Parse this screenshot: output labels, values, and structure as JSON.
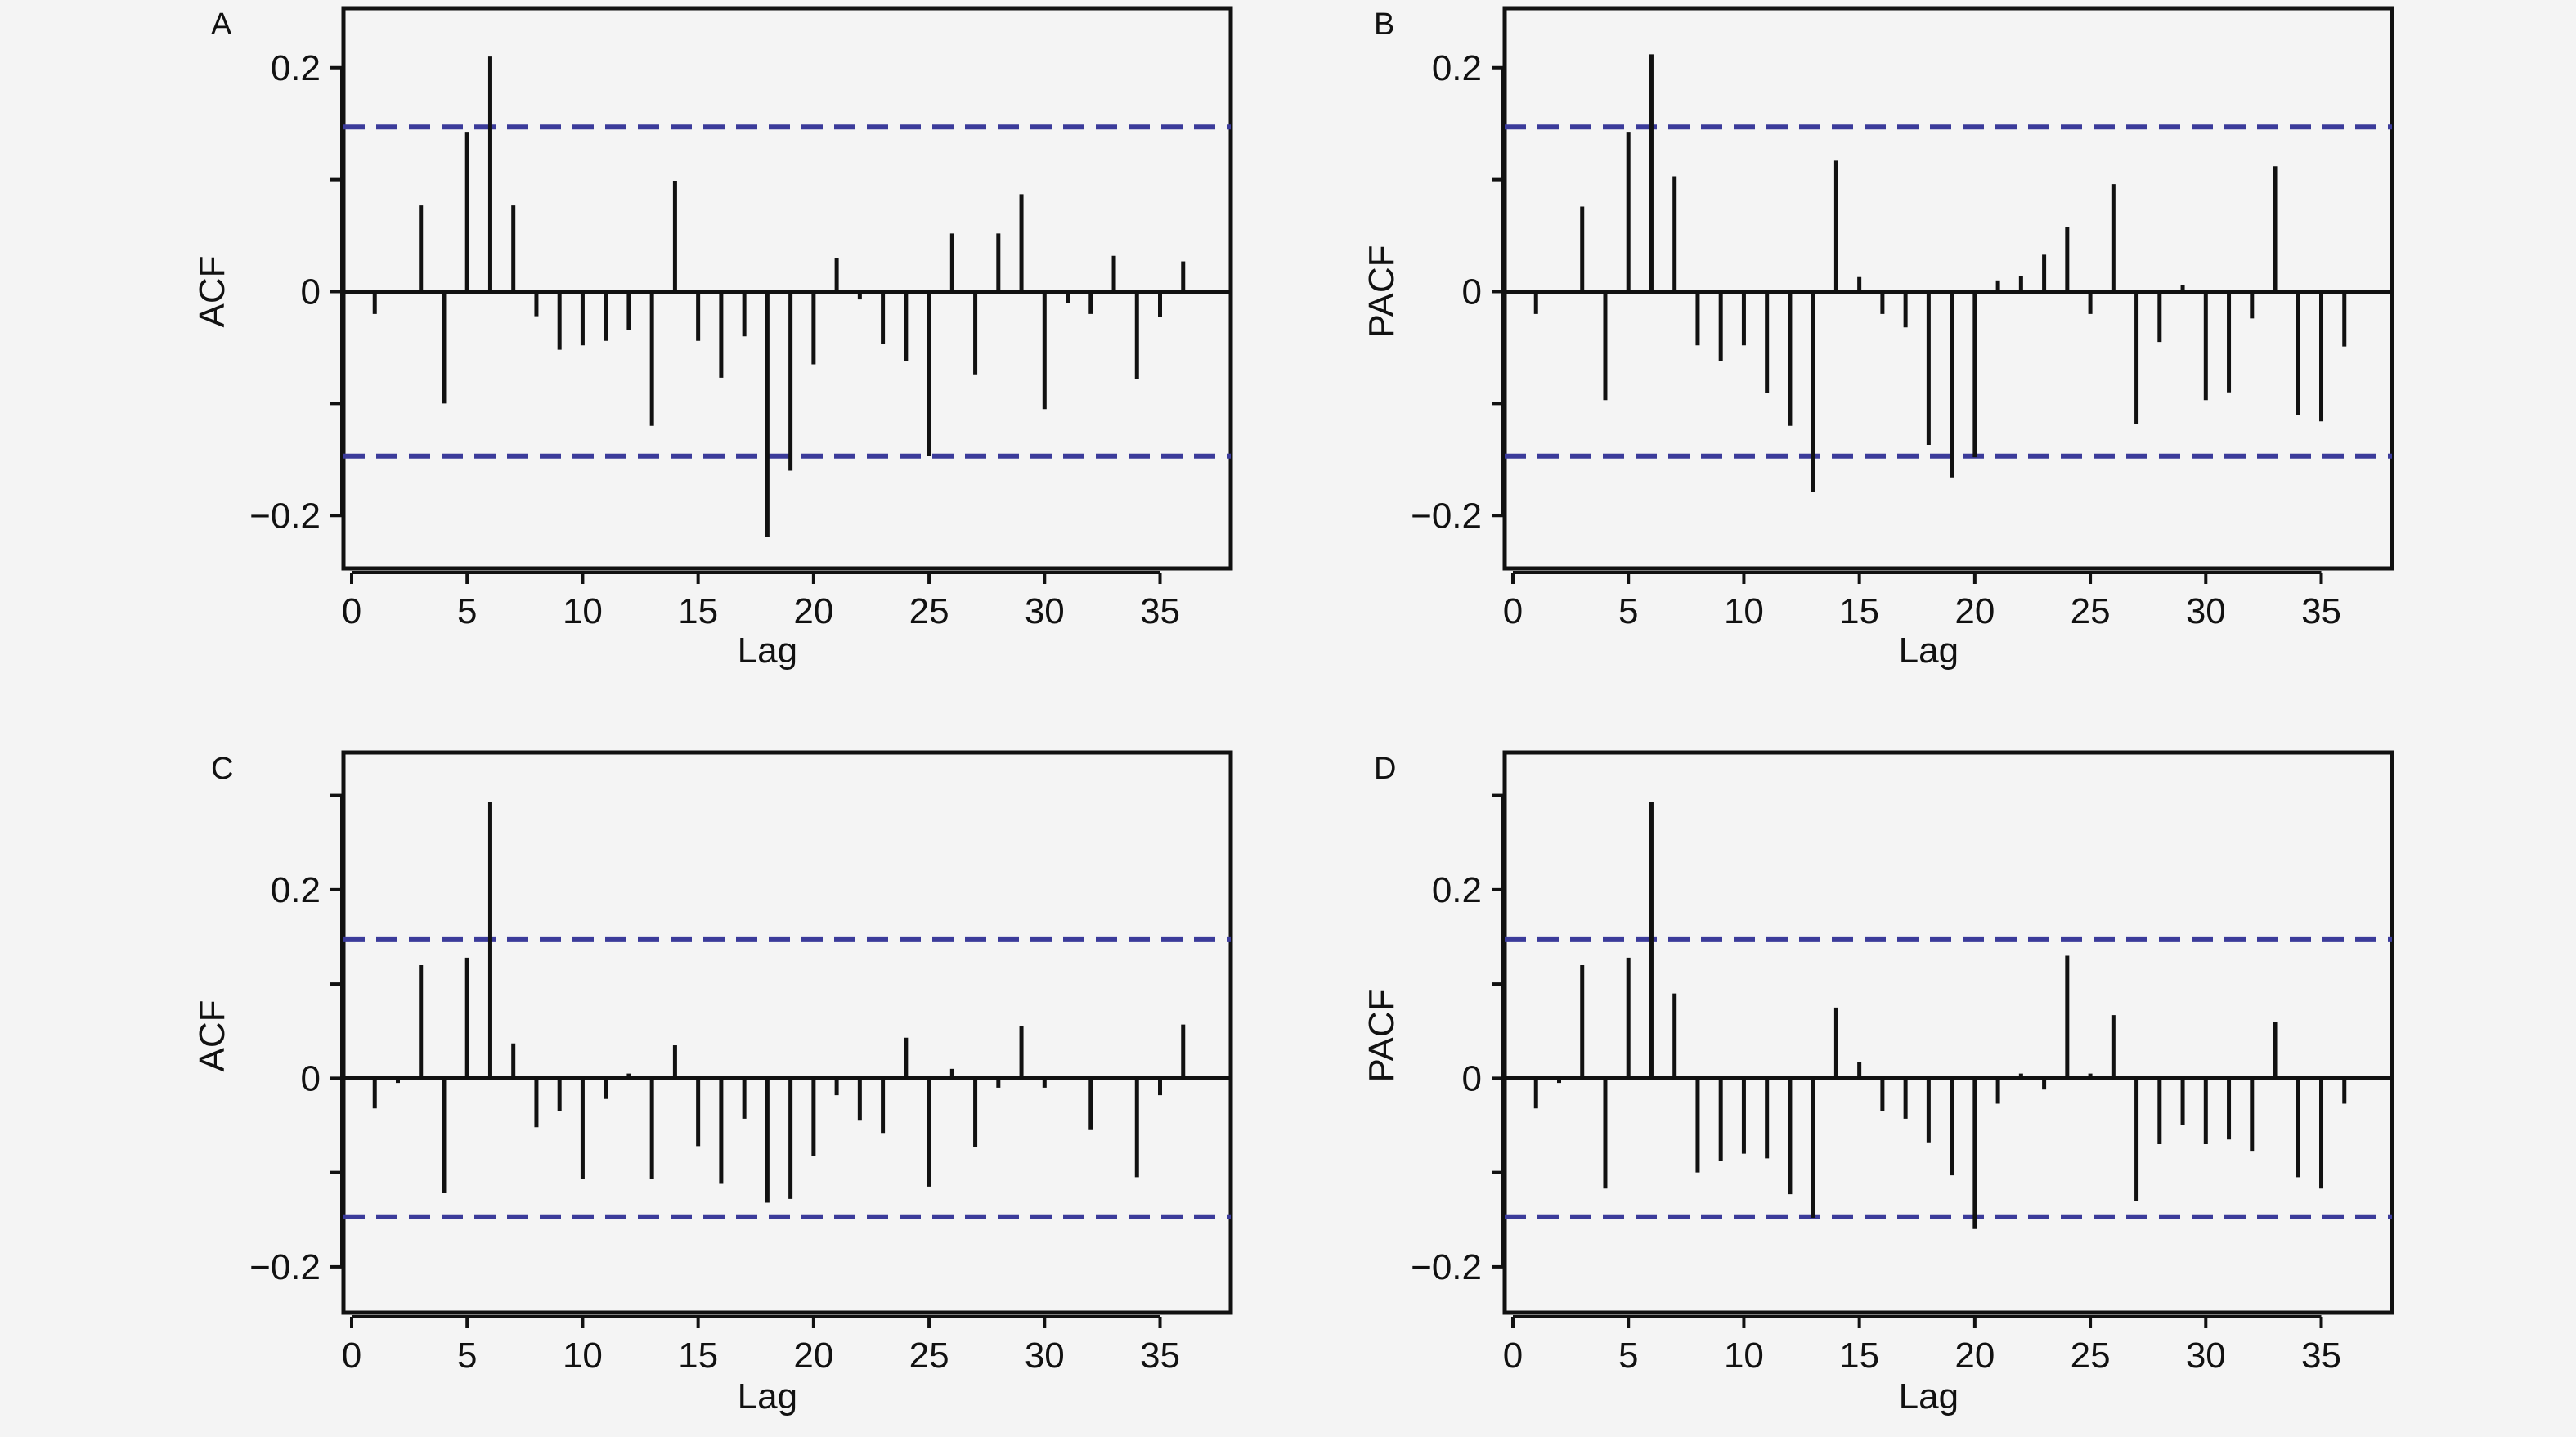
{
  "chart_data": [
    {
      "panel": "A",
      "type": "bar",
      "ylabel": "ACF",
      "xlabel": "Lag",
      "xlim": [
        0,
        37
      ],
      "ylim": [
        -0.24,
        0.24
      ],
      "xticks": [
        "0",
        "5",
        "10",
        "15",
        "20",
        "25",
        "30",
        "35"
      ],
      "yticks": [
        "−0.2",
        "0",
        "0.2"
      ],
      "confidence_bound": 0.147,
      "x": [
        1,
        2,
        3,
        4,
        5,
        6,
        7,
        8,
        9,
        10,
        11,
        12,
        13,
        14,
        15,
        16,
        17,
        18,
        19,
        20,
        21,
        22,
        23,
        24,
        25,
        26,
        27,
        28,
        29,
        30,
        31,
        32,
        33,
        34,
        35,
        36
      ],
      "values": [
        -0.02,
        0.0,
        0.077,
        -0.1,
        0.142,
        0.21,
        0.077,
        -0.022,
        -0.052,
        -0.048,
        -0.044,
        -0.034,
        -0.12,
        0.099,
        -0.044,
        -0.077,
        -0.04,
        -0.219,
        -0.16,
        -0.065,
        0.03,
        -0.007,
        -0.047,
        -0.062,
        -0.147,
        0.052,
        -0.074,
        0.052,
        0.087,
        -0.105,
        -0.01,
        -0.02,
        0.032,
        -0.078,
        -0.023,
        0.027
      ]
    },
    {
      "panel": "B",
      "type": "bar",
      "ylabel": "PACF",
      "xlabel": "Lag",
      "xlim": [
        0,
        37
      ],
      "ylim": [
        -0.24,
        0.24
      ],
      "xticks": [
        "0",
        "5",
        "10",
        "15",
        "20",
        "25",
        "30",
        "35"
      ],
      "yticks": [
        "−0.2",
        "0",
        "0.2"
      ],
      "confidence_bound": 0.147,
      "x": [
        1,
        2,
        3,
        4,
        5,
        6,
        7,
        8,
        9,
        10,
        11,
        12,
        13,
        14,
        15,
        16,
        17,
        18,
        19,
        20,
        21,
        22,
        23,
        24,
        25,
        26,
        27,
        28,
        29,
        30,
        31,
        32,
        33,
        34,
        35,
        36
      ],
      "values": [
        -0.02,
        0.0,
        0.076,
        -0.097,
        0.142,
        0.212,
        0.103,
        -0.048,
        -0.062,
        -0.048,
        -0.091,
        -0.12,
        -0.179,
        0.117,
        0.013,
        -0.02,
        -0.032,
        -0.137,
        -0.166,
        -0.148,
        0.01,
        0.014,
        0.033,
        0.058,
        -0.02,
        0.096,
        -0.118,
        -0.045,
        0.006,
        -0.097,
        -0.09,
        -0.024,
        0.112,
        -0.11,
        -0.116,
        -0.049
      ]
    },
    {
      "panel": "C",
      "type": "bar",
      "ylabel": "ACF",
      "xlabel": "Lag",
      "xlim": [
        0,
        37
      ],
      "ylim": [
        -0.24,
        0.33
      ],
      "xticks": [
        "0",
        "5",
        "10",
        "15",
        "20",
        "25",
        "30",
        "35"
      ],
      "yticks": [
        "−0.2",
        "0",
        "0.2"
      ],
      "confidence_bound": 0.147,
      "x": [
        1,
        2,
        3,
        4,
        5,
        6,
        7,
        8,
        9,
        10,
        11,
        12,
        13,
        14,
        15,
        16,
        17,
        18,
        19,
        20,
        21,
        22,
        23,
        24,
        25,
        26,
        27,
        28,
        29,
        30,
        31,
        32,
        33,
        34,
        35,
        36
      ],
      "values": [
        -0.032,
        -0.005,
        0.12,
        -0.122,
        0.128,
        0.293,
        0.037,
        -0.052,
        -0.035,
        -0.107,
        -0.022,
        0.005,
        -0.107,
        0.035,
        -0.072,
        -0.112,
        -0.043,
        -0.132,
        -0.128,
        -0.083,
        -0.018,
        -0.045,
        -0.058,
        0.043,
        -0.115,
        0.01,
        -0.073,
        -0.01,
        0.055,
        -0.01,
        0.0,
        -0.055,
        0.0,
        -0.105,
        -0.018,
        0.057
      ]
    },
    {
      "panel": "D",
      "type": "bar",
      "ylabel": "PACF",
      "xlabel": "Lag",
      "xlim": [
        0,
        37
      ],
      "ylim": [
        -0.24,
        0.33
      ],
      "xticks": [
        "0",
        "5",
        "10",
        "15",
        "20",
        "25",
        "30",
        "35"
      ],
      "yticks": [
        "−0.2",
        "0",
        "0.2"
      ],
      "confidence_bound": 0.147,
      "x": [
        1,
        2,
        3,
        4,
        5,
        6,
        7,
        8,
        9,
        10,
        11,
        12,
        13,
        14,
        15,
        16,
        17,
        18,
        19,
        20,
        21,
        22,
        23,
        24,
        25,
        26,
        27,
        28,
        29,
        30,
        31,
        32,
        33,
        34,
        35,
        36
      ],
      "values": [
        -0.032,
        -0.005,
        0.12,
        -0.117,
        0.128,
        0.293,
        0.09,
        -0.1,
        -0.088,
        -0.08,
        -0.085,
        -0.123,
        -0.148,
        0.075,
        0.017,
        -0.035,
        -0.043,
        -0.068,
        -0.103,
        -0.16,
        -0.027,
        0.005,
        -0.012,
        0.13,
        0.005,
        0.067,
        -0.13,
        -0.07,
        -0.05,
        -0.07,
        -0.065,
        -0.077,
        0.06,
        -0.105,
        -0.117,
        -0.027
      ]
    }
  ],
  "style": {
    "line_color": "#111111",
    "bound_color": "#3b3b9a",
    "background": "#f4f4f4"
  }
}
